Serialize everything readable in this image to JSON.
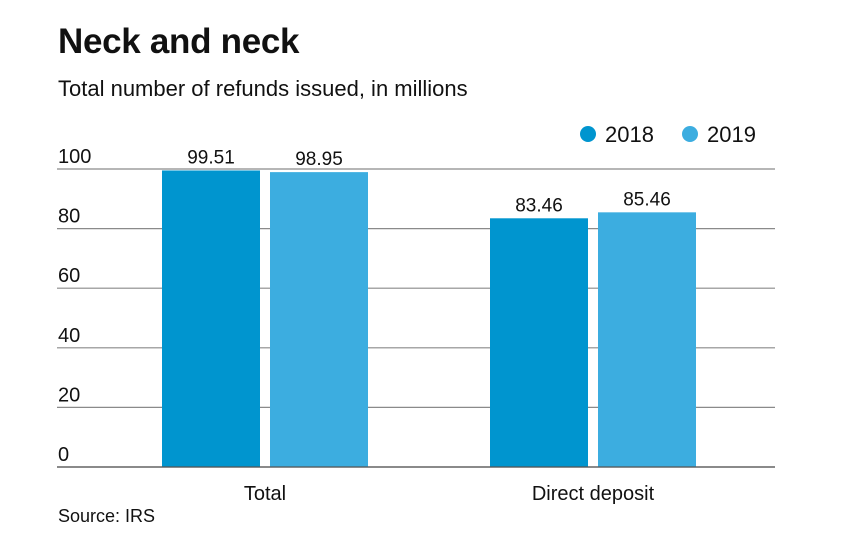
{
  "title": "Neck and neck",
  "subtitle": "Total number of refunds issued, in millions",
  "source": "Source: IRS",
  "chart_data": {
    "type": "bar",
    "title": "Neck and neck",
    "subtitle": "Total number of refunds issued, in millions",
    "categories": [
      "Total",
      "Direct deposit"
    ],
    "series": [
      {
        "name": "2018",
        "values": [
          99.51,
          83.46
        ],
        "labels": [
          "99.51",
          "83.46"
        ],
        "color": "#0095cf"
      },
      {
        "name": "2019",
        "values": [
          98.95,
          85.46
        ],
        "labels": [
          "98.95",
          "85.46"
        ],
        "color": "#3cade0"
      }
    ],
    "ylim": [
      0,
      100
    ],
    "yticks": [
      0,
      20,
      40,
      60,
      80,
      100
    ],
    "grid": true,
    "legend": "top-right",
    "gridline_color": "#8a8a8a"
  }
}
